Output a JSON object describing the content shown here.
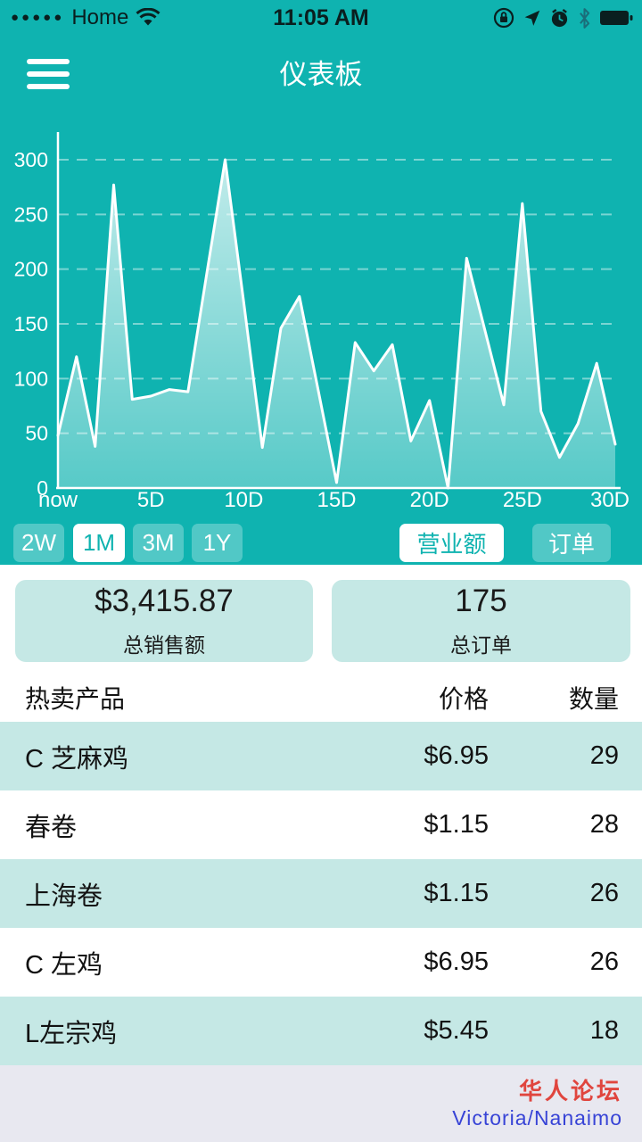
{
  "status_bar": {
    "signal_dots": "●●●●●",
    "carrier": "Home",
    "time": "11:05 AM",
    "right_icons": [
      "orientation-lock",
      "location",
      "alarm",
      "bluetooth",
      "battery-full"
    ]
  },
  "header": {
    "title": "仪表板"
  },
  "chart_data": {
    "type": "area",
    "series_name": "营业额",
    "x_tick_labels": [
      "now",
      "5D",
      "10D",
      "15D",
      "20D",
      "25D",
      "30D"
    ],
    "x_days": [
      0,
      1,
      2,
      3,
      4,
      5,
      6,
      7,
      8,
      9,
      10,
      11,
      12,
      13,
      14,
      15,
      16,
      17,
      18,
      19,
      20,
      21,
      22,
      23,
      24,
      25,
      26,
      27,
      28,
      29,
      30
    ],
    "values": [
      48,
      120,
      38,
      277,
      81,
      84,
      90,
      88,
      195,
      300,
      170,
      37,
      146,
      175,
      90,
      5,
      133,
      107,
      131,
      43,
      80,
      0,
      210,
      143,
      76,
      260,
      70,
      28,
      59,
      114,
      40
    ],
    "yticks": [
      0,
      50,
      100,
      150,
      200,
      250,
      300
    ],
    "ylim": [
      0,
      325
    ],
    "grid": true,
    "line_color": "#ffffff",
    "fill_gradient": [
      "rgba(255,255,255,0.78)",
      "rgba(255,255,255,0.30)"
    ]
  },
  "range_buttons": [
    {
      "label": "2W",
      "selected": false
    },
    {
      "label": "1M",
      "selected": true
    },
    {
      "label": "3M",
      "selected": false
    },
    {
      "label": "1Y",
      "selected": false
    }
  ],
  "metric_buttons": [
    {
      "label": "营业额",
      "selected": true
    },
    {
      "label": "订单",
      "selected": false
    }
  ],
  "summary_cards": [
    {
      "value": "$3,415.87",
      "label": "总销售额"
    },
    {
      "value": "175",
      "label": "总订单"
    }
  ],
  "table": {
    "columns": [
      "热卖产品",
      "价格",
      "数量"
    ],
    "rows": [
      [
        "C 芝麻鸡",
        "$6.95",
        "29"
      ],
      [
        "春卷",
        "$1.15",
        "28"
      ],
      [
        "上海卷",
        "$1.15",
        "26"
      ],
      [
        "C 左鸡",
        "$6.95",
        "26"
      ],
      [
        "L左宗鸡",
        "$5.45",
        "18"
      ]
    ]
  },
  "watermark": {
    "line1": "华人论坛",
    "line2": "Victoria/Nanaimo"
  },
  "colors": {
    "accent_teal": "#0fb3b0",
    "mint": "#c5e8e5",
    "footer_bg": "#e8e8f0",
    "watermark_red": "#e0453e",
    "watermark_blue": "#3743d6",
    "status_text": "#0a1f1f"
  }
}
